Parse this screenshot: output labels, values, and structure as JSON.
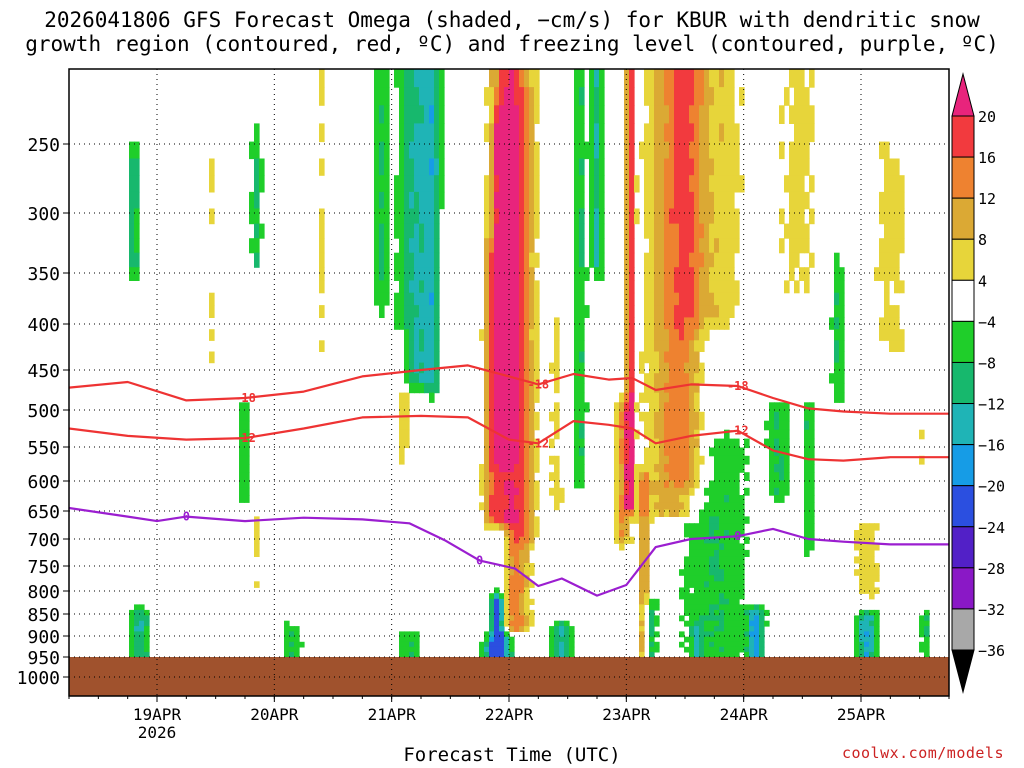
{
  "title_line1": "2026041806 GFS Forecast Omega (shaded, −cm/s) for KBUR with dendritic snow",
  "title_line2": "growth region (contoured, red, ºC) and freezing level (contoured, purple, ºC)",
  "credit": "coolwx.com/models",
  "chart_data": {
    "type": "heatmap",
    "xlabel": "Forecast Time (UTC)",
    "ylabel": "",
    "x_ticks": [
      {
        "label": "19APR",
        "sublabel": "2026",
        "t": 0.75
      },
      {
        "label": "20APR",
        "sublabel": "",
        "t": 1.75
      },
      {
        "label": "21APR",
        "sublabel": "",
        "t": 2.75
      },
      {
        "label": "22APR",
        "sublabel": "",
        "t": 3.75
      },
      {
        "label": "23APR",
        "sublabel": "",
        "t": 4.75
      },
      {
        "label": "24APR",
        "sublabel": "",
        "t": 5.75
      },
      {
        "label": "25APR",
        "sublabel": "",
        "t": 6.75
      }
    ],
    "xlim": [
      0,
      7.5
    ],
    "y_ticks": [
      250,
      300,
      350,
      400,
      450,
      500,
      550,
      600,
      650,
      700,
      750,
      800,
      850,
      900,
      950,
      1000
    ],
    "ylim_hPa": [
      1000,
      200
    ],
    "ground_level_hPa": 950,
    "colorbar": {
      "labels": [
        "20",
        "16",
        "12",
        "8",
        "4",
        "−4",
        "−8",
        "−12",
        "−16",
        "−20",
        "−24",
        "−28",
        "−32",
        "−36"
      ],
      "colors": [
        "#f23a3e",
        "#ee8230",
        "#dba934",
        "#e7d53a",
        "#ffffff",
        "#1fce2a",
        "#17b86d",
        "#1fb4b6",
        "#169ce6",
        "#2b4fe0",
        "#5220c7",
        "#8a18c6",
        "#a8a8a8"
      ],
      "top_arrow_color": "#e8247c",
      "bottom_arrow_color": "#000000"
    },
    "features": [
      {
        "name": "upward-motion-core-22apr",
        "t_center": 3.75,
        "p_top": 200,
        "p_bottom": 880,
        "peak": 20
      },
      {
        "name": "upward-motion-core-23apr",
        "t_center": 4.8,
        "p_top": 200,
        "p_bottom": 640,
        "peak": 20
      },
      {
        "name": "upward-motion-broad-23apr",
        "t_center": 5.15,
        "p_top": 200,
        "p_bottom": 650,
        "peak": 12
      },
      {
        "name": "descent-band-21apr",
        "t_center": 2.95,
        "p_top": 200,
        "p_bottom": 450,
        "peak": -12
      },
      {
        "name": "descent-low-22apr",
        "t_center": 3.65,
        "p_top": 700,
        "p_bottom": 950,
        "peak": -20
      }
    ],
    "series": [
      {
        "name": "-18",
        "color": "#ee3333",
        "x": [
          0,
          0.5,
          1.0,
          1.5,
          2.0,
          2.5,
          3.0,
          3.4,
          3.75,
          4.0,
          4.3,
          4.6,
          4.8,
          5.0,
          5.3,
          5.7,
          6.0,
          6.3,
          6.6,
          7.0,
          7.5
        ],
        "y": [
          472,
          465,
          488,
          485,
          477,
          458,
          450,
          445,
          458,
          468,
          455,
          462,
          460,
          475,
          468,
          470,
          485,
          498,
          502,
          505,
          505
        ]
      },
      {
        "name": "-12",
        "color": "#ee3333",
        "x": [
          0,
          0.5,
          1.0,
          1.5,
          2.0,
          2.5,
          3.0,
          3.4,
          3.75,
          4.0,
          4.3,
          4.6,
          4.8,
          5.0,
          5.3,
          5.7,
          6.0,
          6.3,
          6.6,
          7.0,
          7.5
        ],
        "y": [
          525,
          535,
          540,
          538,
          525,
          510,
          508,
          510,
          540,
          545,
          515,
          520,
          525,
          545,
          535,
          528,
          555,
          568,
          570,
          565,
          565
        ]
      },
      {
        "name": "0",
        "color": "#9b1ed0",
        "x": [
          0,
          0.5,
          0.75,
          1.0,
          1.5,
          2.0,
          2.5,
          2.9,
          3.2,
          3.5,
          3.8,
          4.0,
          4.2,
          4.5,
          4.75,
          5.0,
          5.3,
          5.7,
          6.0,
          6.3,
          6.6,
          7.0,
          7.5
        ],
        "y": [
          645,
          660,
          668,
          660,
          668,
          662,
          665,
          672,
          702,
          740,
          755,
          790,
          775,
          810,
          788,
          715,
          700,
          695,
          682,
          700,
          705,
          710,
          710
        ]
      }
    ]
  }
}
